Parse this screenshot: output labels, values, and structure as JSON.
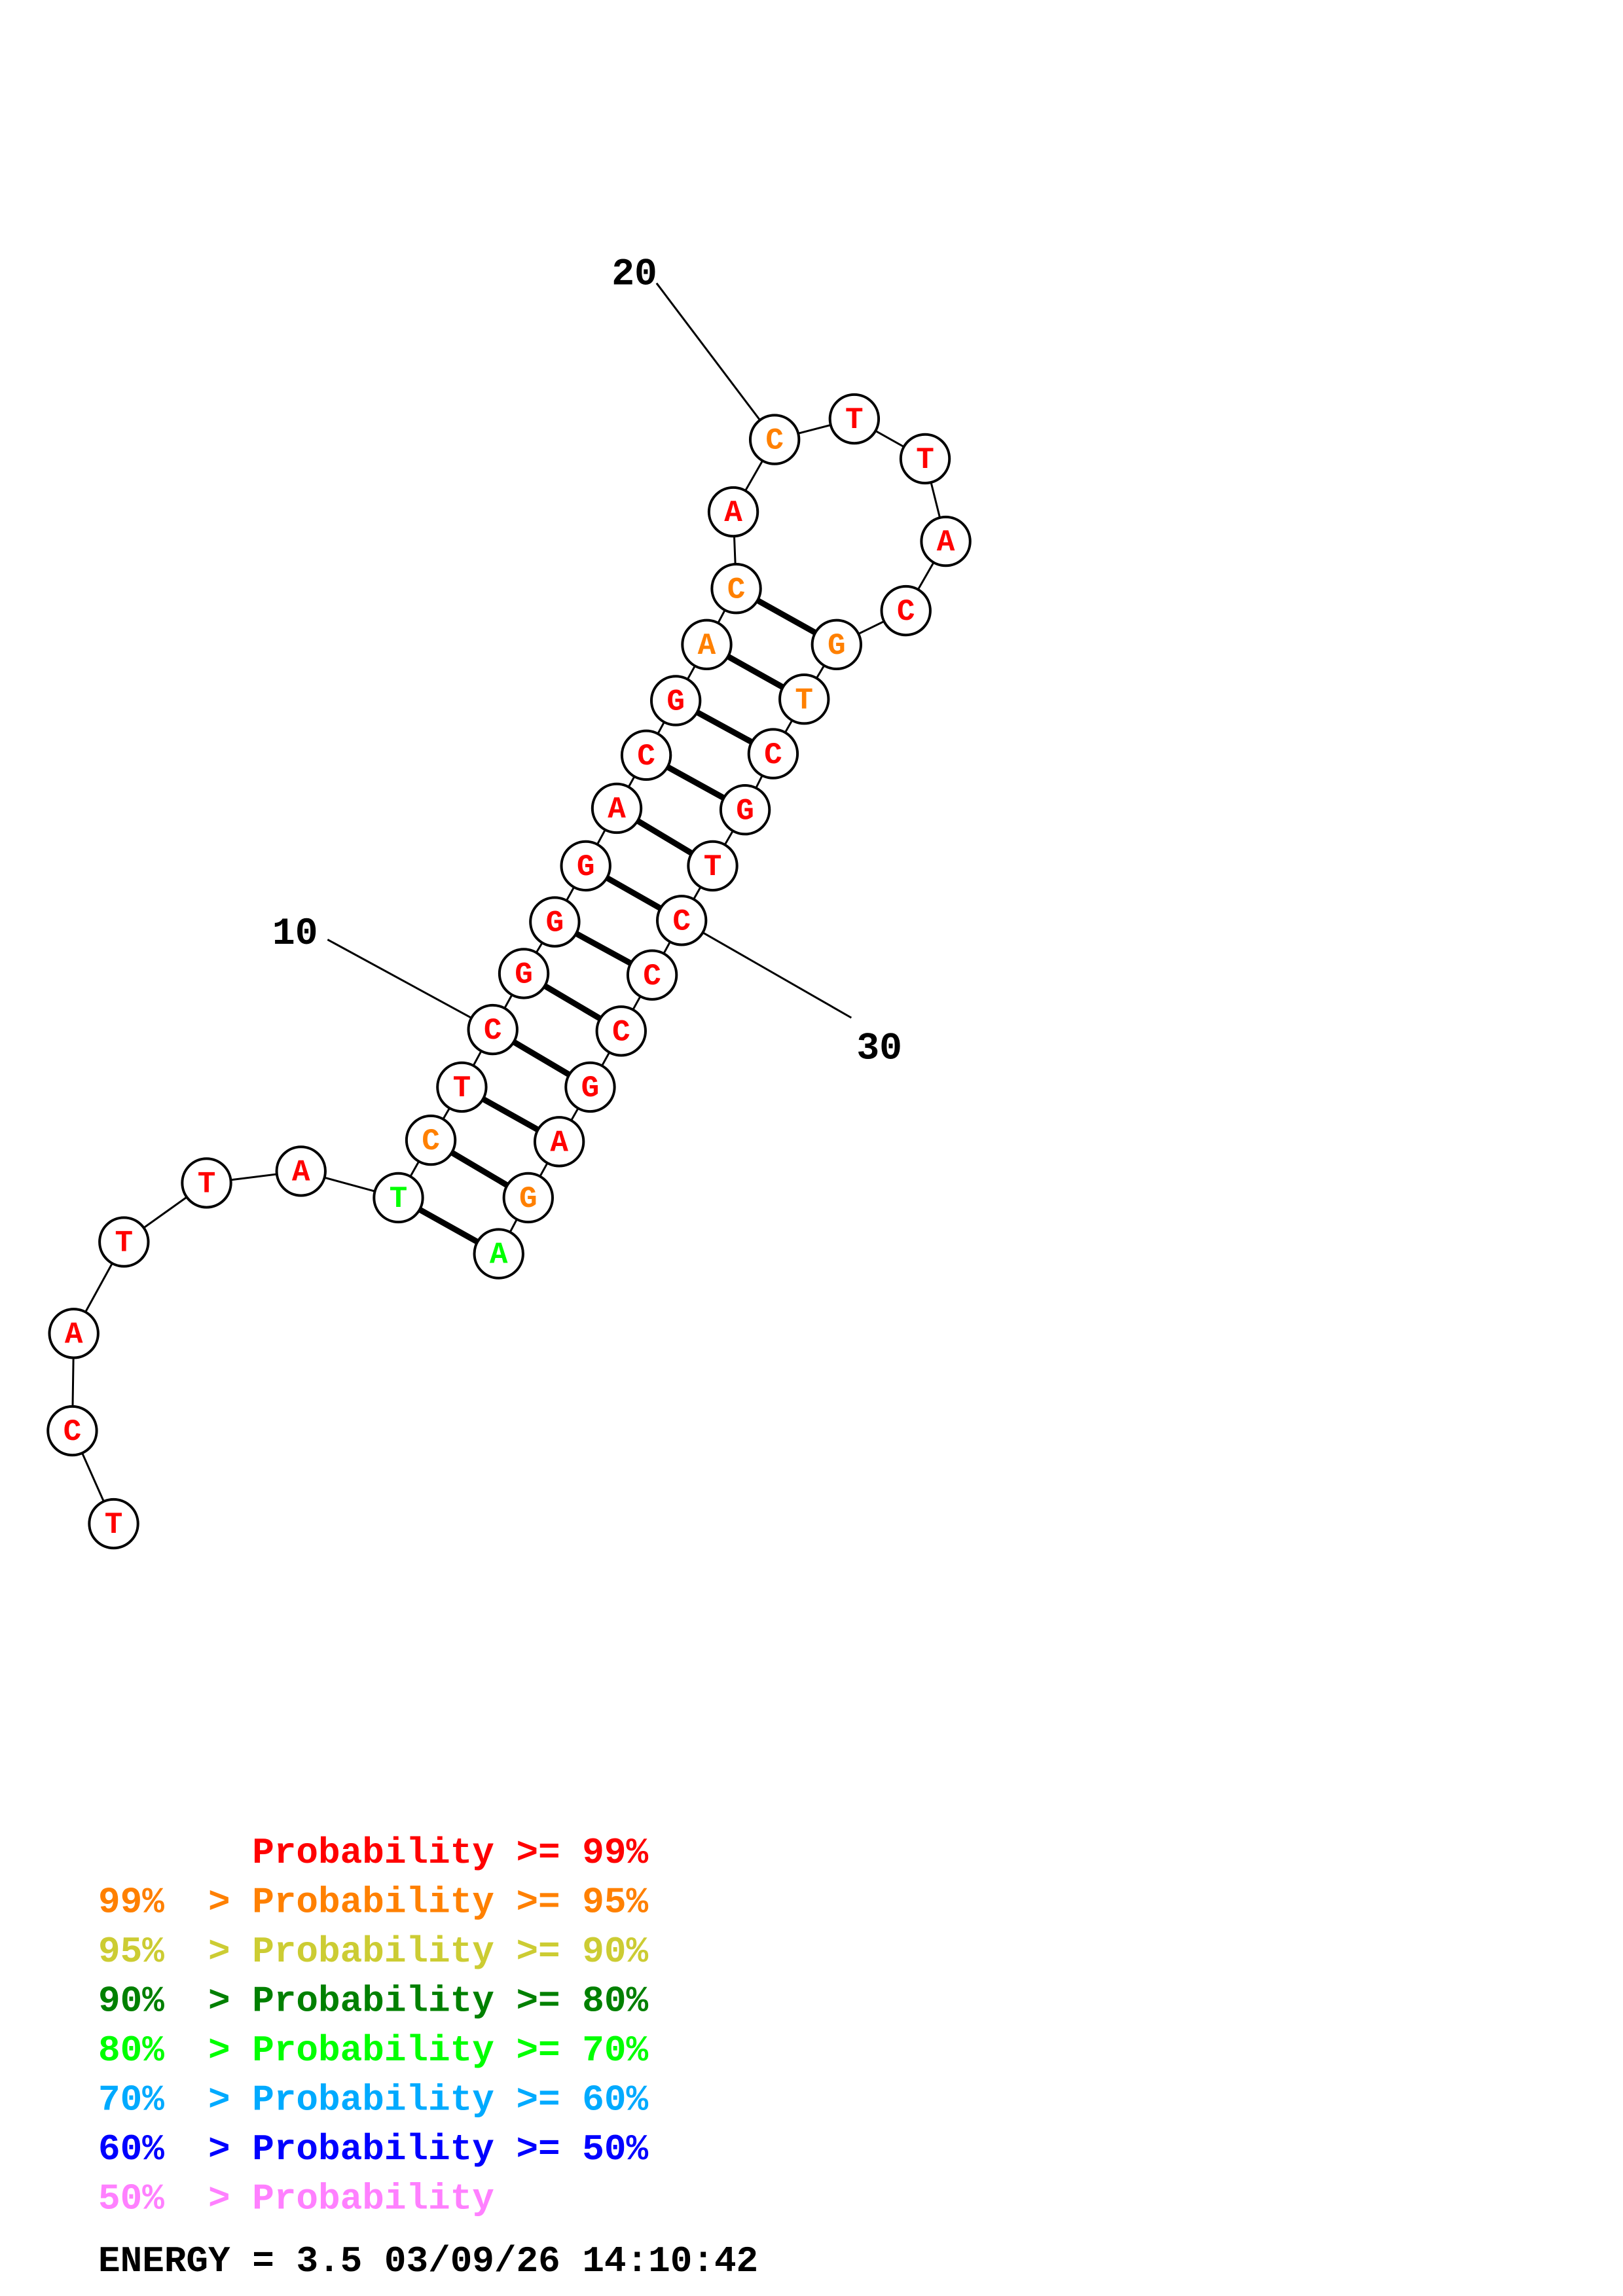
{
  "colors": {
    "p99": "#ff0000",
    "p95": "#ff8000",
    "p90": "#cccc33",
    "p80": "#008000",
    "p70": "#00ff00",
    "p60": "#00aaff",
    "p50": "#0000ff",
    "plow": "#ff80ff"
  },
  "sequence": [
    {
      "n": 1,
      "b": "T",
      "c": "p99"
    },
    {
      "n": 2,
      "b": "C",
      "c": "p99"
    },
    {
      "n": 3,
      "b": "A",
      "c": "p99"
    },
    {
      "n": 4,
      "b": "T",
      "c": "p99"
    },
    {
      "n": 5,
      "b": "T",
      "c": "p99"
    },
    {
      "n": 6,
      "b": "A",
      "c": "p99"
    },
    {
      "n": 7,
      "b": "T",
      "c": "p70"
    },
    {
      "n": 8,
      "b": "C",
      "c": "p95"
    },
    {
      "n": 9,
      "b": "T",
      "c": "p99"
    },
    {
      "n": 10,
      "b": "C",
      "c": "p99"
    },
    {
      "n": 11,
      "b": "G",
      "c": "p99"
    },
    {
      "n": 12,
      "b": "G",
      "c": "p99"
    },
    {
      "n": 13,
      "b": "G",
      "c": "p99"
    },
    {
      "n": 14,
      "b": "A",
      "c": "p99"
    },
    {
      "n": 15,
      "b": "C",
      "c": "p99"
    },
    {
      "n": 16,
      "b": "G",
      "c": "p99"
    },
    {
      "n": 17,
      "b": "A",
      "c": "p95"
    },
    {
      "n": 18,
      "b": "C",
      "c": "p95"
    },
    {
      "n": 19,
      "b": "A",
      "c": "p99"
    },
    {
      "n": 20,
      "b": "C",
      "c": "p95"
    },
    {
      "n": 21,
      "b": "T",
      "c": "p99"
    },
    {
      "n": 22,
      "b": "T",
      "c": "p99"
    },
    {
      "n": 23,
      "b": "A",
      "c": "p99"
    },
    {
      "n": 24,
      "b": "C",
      "c": "p99"
    },
    {
      "n": 25,
      "b": "G",
      "c": "p95"
    },
    {
      "n": 26,
      "b": "T",
      "c": "p95"
    },
    {
      "n": 27,
      "b": "C",
      "c": "p99"
    },
    {
      "n": 28,
      "b": "G",
      "c": "p99"
    },
    {
      "n": 29,
      "b": "T",
      "c": "p99"
    },
    {
      "n": 30,
      "b": "C",
      "c": "p99"
    },
    {
      "n": 31,
      "b": "C",
      "c": "p99"
    },
    {
      "n": 32,
      "b": "C",
      "c": "p99"
    },
    {
      "n": 33,
      "b": "G",
      "c": "p99"
    },
    {
      "n": 34,
      "b": "A",
      "c": "p99"
    },
    {
      "n": 35,
      "b": "G",
      "c": "p95"
    },
    {
      "n": 36,
      "b": "A",
      "c": "p70"
    }
  ],
  "pairs": [
    [
      7,
      36
    ],
    [
      8,
      35
    ],
    [
      9,
      34
    ],
    [
      10,
      33
    ],
    [
      11,
      32
    ],
    [
      12,
      31
    ],
    [
      13,
      30
    ],
    [
      14,
      29
    ],
    [
      15,
      28
    ],
    [
      16,
      27
    ],
    [
      17,
      26
    ],
    [
      18,
      25
    ]
  ],
  "index_labels": [
    {
      "text": "10",
      "base": 10
    },
    {
      "text": "20",
      "base": 20
    },
    {
      "text": "30",
      "base": 30
    }
  ],
  "legend": [
    {
      "range": "",
      "sep": "",
      "label": "Probability >= 99%",
      "color": "p99"
    },
    {
      "range": "99%",
      "sep": ">",
      "label": "Probability >= 95%",
      "color": "p95"
    },
    {
      "range": "95%",
      "sep": ">",
      "label": "Probability >= 90%",
      "color": "p90"
    },
    {
      "range": "90%",
      "sep": ">",
      "label": "Probability >= 80%",
      "color": "p80"
    },
    {
      "range": "80%",
      "sep": ">",
      "label": "Probability >= 70%",
      "color": "p70"
    },
    {
      "range": "70%",
      "sep": ">",
      "label": "Probability >= 60%",
      "color": "p60"
    },
    {
      "range": "60%",
      "sep": ">",
      "label": "Probability >= 50%",
      "color": "p50"
    },
    {
      "range": "50%",
      "sep": ">",
      "label": "Probability",
      "color": "plow"
    }
  ],
  "energy_text": "ENERGY = 3.5  03/09/26 14:10:42"
}
